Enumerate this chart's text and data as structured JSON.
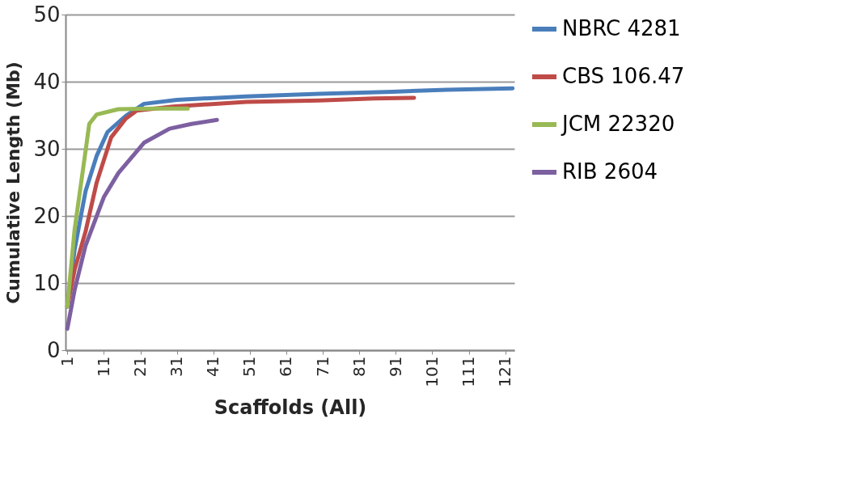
{
  "chart_data": {
    "type": "line",
    "xlabel": "Scaffolds (All)",
    "ylabel": "Cumulative Length (Mb)",
    "xlim": [
      0.5,
      123.5
    ],
    "xticks": [
      1,
      11,
      21,
      31,
      41,
      51,
      61,
      71,
      81,
      91,
      101,
      111,
      121
    ],
    "ylim": [
      0,
      50
    ],
    "yticks": [
      0,
      10,
      20,
      30,
      40,
      50
    ],
    "grid": "y",
    "legend": "right",
    "marker": "none",
    "line_style": "solid",
    "series": [
      {
        "name": "NBRC 4281",
        "color": "#4a7ebb",
        "x": [
          1,
          3,
          6,
          9,
          12,
          17,
          22,
          31,
          50,
          70,
          90,
          105,
          123
        ],
        "values": [
          6.5,
          15,
          23.7,
          28.9,
          32.5,
          34.9,
          36.7,
          37.3,
          37.8,
          38.2,
          38.5,
          38.8,
          39.0
        ]
      },
      {
        "name": "CBS 106.47",
        "color": "#be4b48",
        "x": [
          1,
          3,
          6,
          9,
          13,
          17,
          20,
          30,
          50,
          70,
          85,
          96
        ],
        "values": [
          6.5,
          12,
          17.7,
          24.9,
          31.7,
          34.5,
          35.7,
          36.3,
          37.0,
          37.2,
          37.5,
          37.6
        ]
      },
      {
        "name": "JCM 22320",
        "color": "#98b954",
        "x": [
          1,
          3,
          6,
          7,
          9,
          15,
          25,
          34
        ],
        "values": [
          6.5,
          18,
          29.7,
          33.7,
          35.1,
          35.9,
          36.0,
          36.0
        ]
      },
      {
        "name": "RIB 2604",
        "color": "#7d60a0",
        "x": [
          1,
          3,
          6,
          11,
          15,
          22,
          29,
          35,
          42
        ],
        "values": [
          3.2,
          9,
          15.6,
          22.8,
          26.4,
          30.9,
          33.0,
          33.7,
          34.3
        ]
      }
    ]
  }
}
